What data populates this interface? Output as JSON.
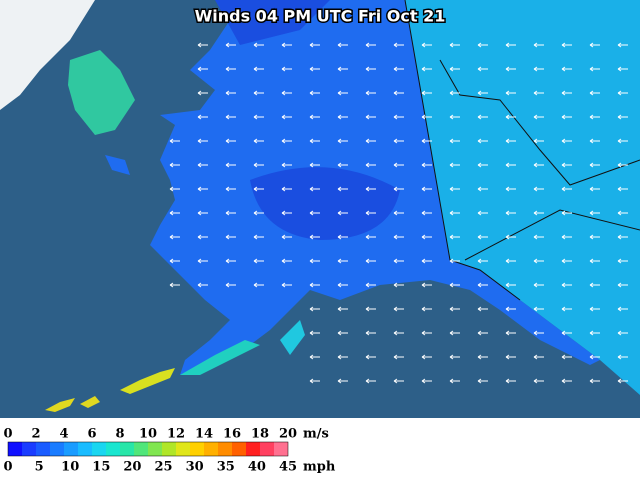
{
  "title": "Winds 04 PM UTC Fri Oct 21",
  "legend": {
    "colors": [
      "#1010ff",
      "#1a3cff",
      "#1a5cff",
      "#1a7cff",
      "#1a9cff",
      "#1abcff",
      "#1ad6f0",
      "#1ae6d0",
      "#28e6a8",
      "#50e67a",
      "#80e650",
      "#b0e628",
      "#e0e61a",
      "#ffd000",
      "#ffb000",
      "#ff8c00",
      "#ff6000",
      "#ff2020",
      "#ff4060",
      "#ff7090"
    ],
    "ms_ticks": [
      "0",
      "2",
      "4",
      "6",
      "8",
      "10",
      "12",
      "14",
      "16",
      "18",
      "20"
    ],
    "ms_unit": "m/s",
    "mph_ticks": [
      "0",
      "5",
      "10",
      "15",
      "20",
      "25",
      "30",
      "35",
      "40",
      "45"
    ],
    "mph_unit": "mph"
  }
}
